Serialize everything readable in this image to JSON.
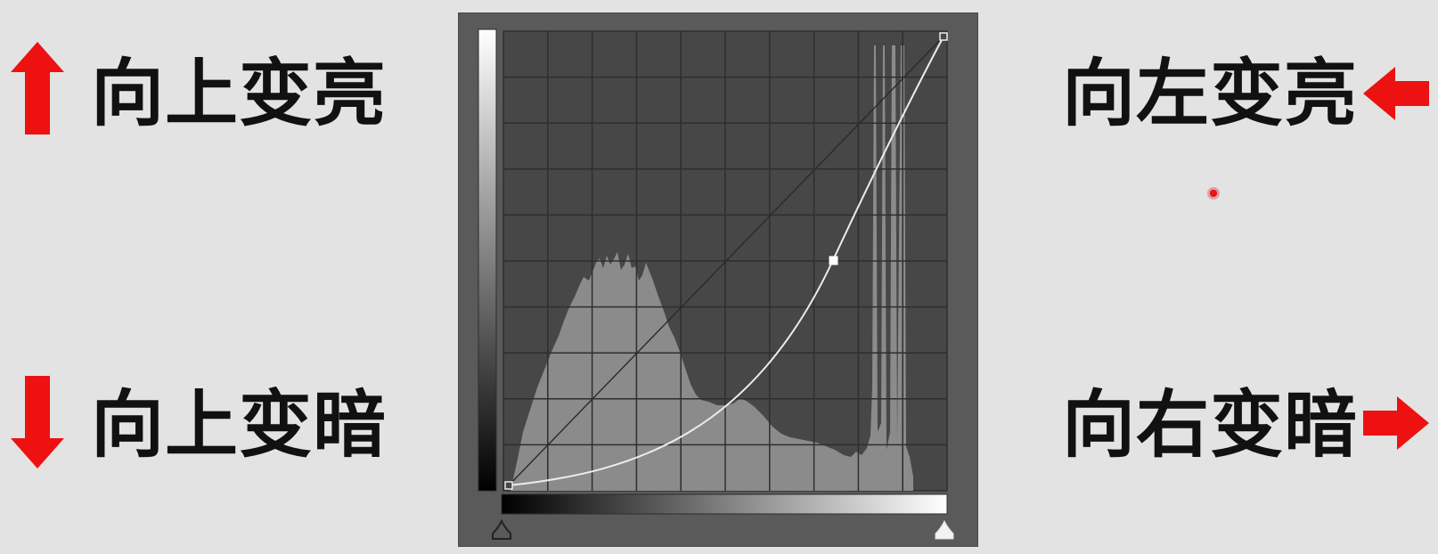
{
  "labels": {
    "top_left": "向上变亮",
    "bottom_left": "向上变暗",
    "top_right": "向左变亮",
    "bottom_right": "向右变暗"
  },
  "icons": {
    "top_left": "arrow-up-icon",
    "bottom_left": "arrow-down-icon",
    "top_right": "arrow-left-icon",
    "bottom_right": "arrow-right-icon",
    "cursor": "cursor-dot-icon"
  },
  "colors": {
    "arrow": "#ee1111",
    "panel_bg": "#5a5a5a",
    "graph_bg": "#474747",
    "histogram": "#8a8a8a",
    "curve": "#ececec",
    "grid": "#333333",
    "background": "#e3e3e3"
  },
  "curves_panel": {
    "points": [
      {
        "input": 0.0,
        "output": 0.0
      },
      {
        "input": 0.76,
        "output": 0.49
      },
      {
        "input": 1.0,
        "output": 1.0
      }
    ],
    "grid_divisions": 10
  }
}
